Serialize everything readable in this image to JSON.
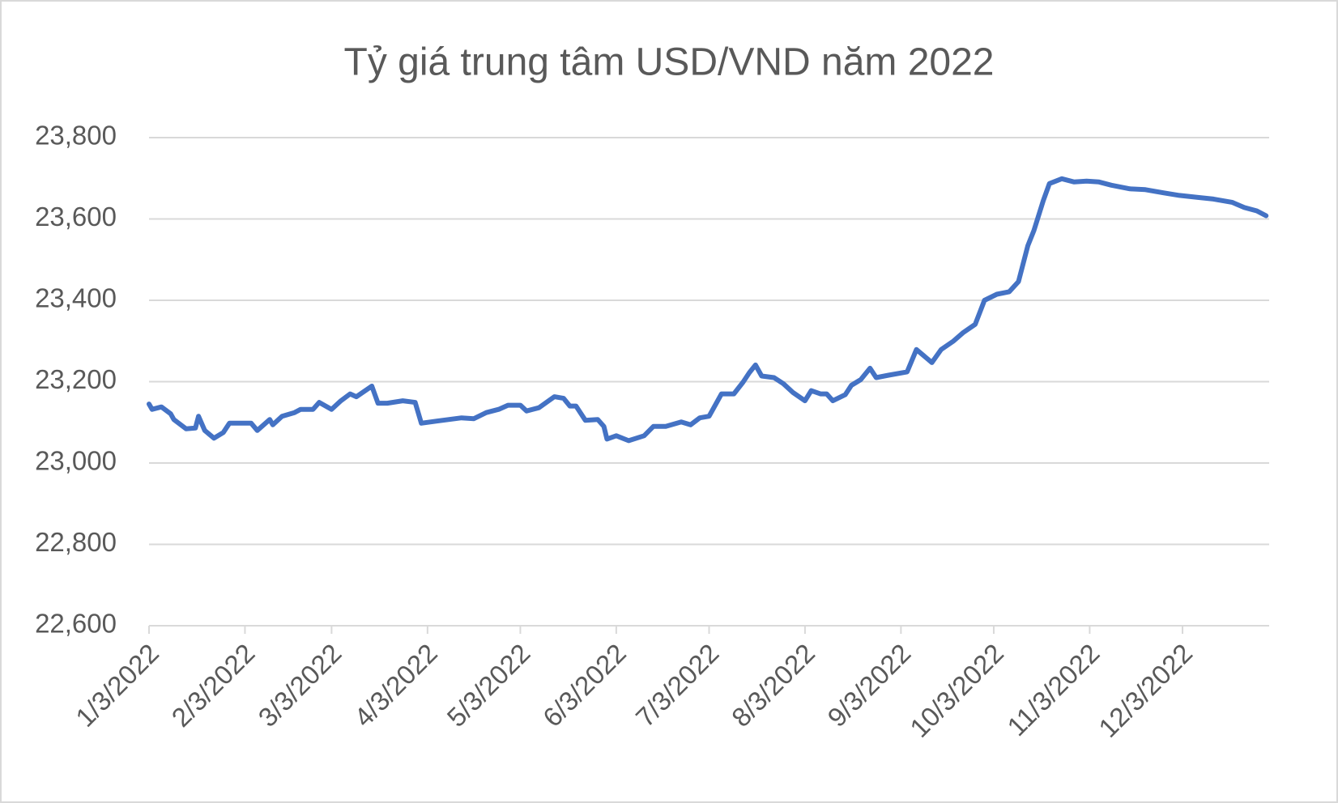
{
  "chart_data": {
    "type": "line",
    "title": "Tỷ giá trung tâm USD/VND năm 2022",
    "x": [
      "1/3/2022",
      "1/4/2022",
      "1/7/2022",
      "1/10/2022",
      "1/11/2022",
      "1/15/2022",
      "1/18/2022",
      "1/19/2022",
      "1/21/2022",
      "1/24/2022",
      "1/27/2022",
      "1/29/2022",
      "2/5/2022",
      "2/7/2022",
      "2/11/2022",
      "2/12/2022",
      "2/15/2022",
      "2/19/2022",
      "2/21/2022",
      "2/25/2022",
      "2/27/2022",
      "3/3/2022",
      "3/6/2022",
      "3/9/2022",
      "3/11/2022",
      "3/16/2022",
      "3/18/2022",
      "3/21/2022",
      "3/26/2022",
      "3/30/2022",
      "4/1/2022",
      "4/6/2022",
      "4/10/2022",
      "4/14/2022",
      "4/18/2022",
      "4/22/2022",
      "4/26/2022",
      "4/29/2022",
      "5/3/2022",
      "5/5/2022",
      "5/9/2022",
      "5/14/2022",
      "5/17/2022",
      "5/19/2022",
      "5/21/2022",
      "5/24/2022",
      "5/28/2022",
      "5/30/2022",
      "5/31/2022",
      "6/3/2022",
      "6/7/2022",
      "6/12/2022",
      "6/15/2022",
      "6/19/2022",
      "6/24/2022",
      "6/27/2022",
      "6/30/2022",
      "7/3/2022",
      "7/7/2022",
      "7/11/2022",
      "7/14/2022",
      "7/16/2022",
      "7/18/2022",
      "7/20/2022",
      "7/24/2022",
      "7/27/2022",
      "7/30/2022",
      "8/3/2022",
      "8/5/2022",
      "8/8/2022",
      "8/10/2022",
      "8/12/2022",
      "8/16/2022",
      "8/18/2022",
      "8/21/2022",
      "8/24/2022",
      "8/26/2022",
      "8/30/2022",
      "9/5/2022",
      "9/8/2022",
      "9/13/2022",
      "9/16/2022",
      "9/20/2022",
      "9/23/2022",
      "9/27/2022",
      "9/30/2022",
      "10/4/2022",
      "10/8/2022",
      "10/11/2022",
      "10/14/2022",
      "10/16/2022",
      "10/19/2022",
      "10/21/2022",
      "10/25/2022",
      "10/29/2022",
      "11/2/2022",
      "11/6/2022",
      "11/10/2022",
      "11/16/2022",
      "11/21/2022",
      "11/27/2022",
      "12/2/2022",
      "12/8/2022",
      "12/13/2022",
      "12/19/2022",
      "12/23/2022",
      "12/27/2022",
      "12/30/2022"
    ],
    "series": [
      {
        "name": "USD/VND",
        "color": "#4472c4",
        "values": [
          23145,
          23132,
          23138,
          23121,
          23107,
          23084,
          23086,
          23115,
          23080,
          23061,
          23075,
          23098,
          23098,
          23080,
          23107,
          23094,
          23115,
          23124,
          23132,
          23132,
          23149,
          23132,
          23153,
          23170,
          23163,
          23189,
          23147,
          23147,
          23153,
          23149,
          23098,
          23103,
          23107,
          23111,
          23109,
          23124,
          23132,
          23142,
          23142,
          23128,
          23136,
          23163,
          23159,
          23140,
          23140,
          23105,
          23107,
          23090,
          23059,
          23067,
          23055,
          23067,
          23090,
          23090,
          23101,
          23094,
          23111,
          23115,
          23170,
          23170,
          23199,
          23222,
          23241,
          23214,
          23210,
          23195,
          23174,
          23153,
          23178,
          23170,
          23170,
          23153,
          23168,
          23191,
          23205,
          23233,
          23210,
          23216,
          23224,
          23279,
          23247,
          23279,
          23300,
          23320,
          23341,
          23400,
          23415,
          23421,
          23446,
          23534,
          23572,
          23645,
          23687,
          23699,
          23691,
          23693,
          23691,
          23683,
          23674,
          23672,
          23664,
          23658,
          23653,
          23649,
          23641,
          23628,
          23620,
          23608
        ]
      }
    ],
    "xlim": [
      "1/3/2022",
      "12/31/2022"
    ],
    "xticks": [
      "1/3/2022",
      "2/3/2022",
      "3/3/2022",
      "4/3/2022",
      "5/3/2022",
      "6/3/2022",
      "7/3/2022",
      "8/3/2022",
      "9/3/2022",
      "10/3/2022",
      "11/3/2022",
      "12/3/2022"
    ],
    "ylim": [
      22600,
      23800
    ],
    "yticks": [
      {
        "value": 22600,
        "label": "22,600"
      },
      {
        "value": 22800,
        "label": "22,800"
      },
      {
        "value": 23000,
        "label": "23,000"
      },
      {
        "value": 23200,
        "label": "23,200"
      },
      {
        "value": 23400,
        "label": "23,400"
      },
      {
        "value": 23600,
        "label": "23,600"
      },
      {
        "value": 23800,
        "label": "23,800"
      }
    ],
    "grid": true
  }
}
